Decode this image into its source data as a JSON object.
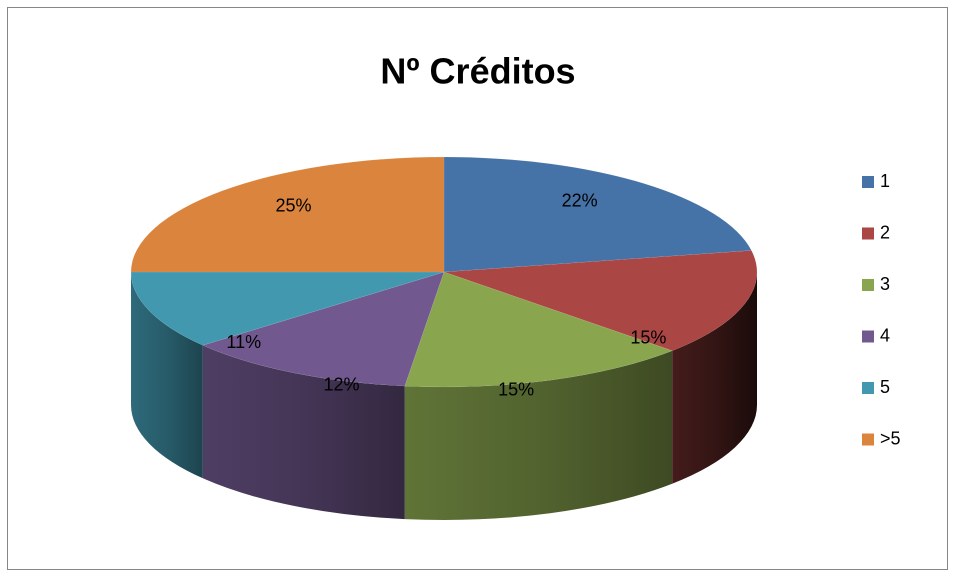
{
  "chart_data": {
    "type": "pie",
    "title": "Nº Créditos",
    "categories": [
      "1",
      "2",
      "3",
      "4",
      "5",
      ">5"
    ],
    "values": [
      22,
      15,
      15,
      12,
      11,
      25
    ],
    "value_labels": [
      "22%",
      "15%",
      "15%",
      "12%",
      "11%",
      "25%"
    ],
    "colors": [
      "#4572a7",
      "#aa4643",
      "#89a54e",
      "#71588f",
      "#4198af",
      "#db843d"
    ],
    "legend": "right"
  }
}
